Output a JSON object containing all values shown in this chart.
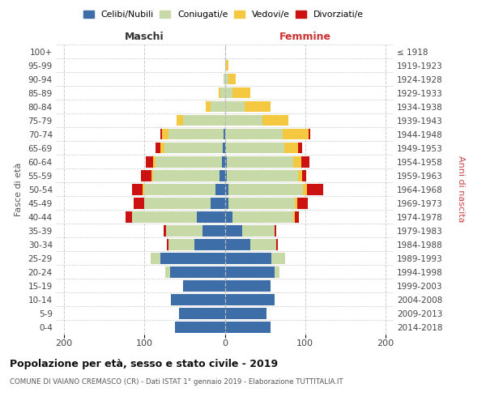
{
  "age_groups": [
    "0-4",
    "5-9",
    "10-14",
    "15-19",
    "20-24",
    "25-29",
    "30-34",
    "35-39",
    "40-44",
    "45-49",
    "50-54",
    "55-59",
    "60-64",
    "65-69",
    "70-74",
    "75-79",
    "80-84",
    "85-89",
    "90-94",
    "95-99",
    "100+"
  ],
  "birth_years": [
    "2014-2018",
    "2009-2013",
    "2004-2008",
    "1999-2003",
    "1994-1998",
    "1989-1993",
    "1984-1988",
    "1979-1983",
    "1974-1978",
    "1969-1973",
    "1964-1968",
    "1959-1963",
    "1954-1958",
    "1949-1953",
    "1944-1948",
    "1939-1943",
    "1934-1938",
    "1929-1933",
    "1924-1928",
    "1919-1923",
    "≤ 1918"
  ],
  "colors": {
    "celibi": "#3d6ea8",
    "coniugati": "#c8d9a8",
    "vedovi": "#f5c842",
    "divorziati": "#cc1111"
  },
  "maschi": {
    "celibi": [
      62,
      57,
      67,
      52,
      68,
      80,
      38,
      28,
      35,
      18,
      12,
      7,
      4,
      3,
      2,
      0,
      0,
      0,
      0,
      0,
      0
    ],
    "coniugati": [
      0,
      0,
      0,
      0,
      6,
      12,
      32,
      45,
      80,
      82,
      88,
      82,
      82,
      72,
      68,
      52,
      18,
      6,
      2,
      0,
      0
    ],
    "vedovi": [
      0,
      0,
      0,
      0,
      0,
      0,
      0,
      0,
      0,
      0,
      2,
      2,
      3,
      5,
      8,
      8,
      6,
      2,
      0,
      0,
      0
    ],
    "divorziati": [
      0,
      0,
      0,
      0,
      0,
      0,
      2,
      3,
      8,
      13,
      13,
      13,
      9,
      6,
      2,
      0,
      0,
      0,
      0,
      0,
      0
    ]
  },
  "femmine": {
    "celibi": [
      57,
      52,
      62,
      57,
      62,
      58,
      32,
      22,
      10,
      5,
      5,
      3,
      3,
      2,
      0,
      0,
      0,
      0,
      0,
      0,
      0
    ],
    "coniugati": [
      0,
      0,
      0,
      0,
      6,
      17,
      32,
      40,
      75,
      82,
      92,
      88,
      82,
      72,
      72,
      47,
      25,
      10,
      5,
      2,
      0
    ],
    "vedovi": [
      0,
      0,
      0,
      0,
      0,
      0,
      0,
      0,
      2,
      3,
      5,
      5,
      10,
      17,
      32,
      32,
      32,
      22,
      9,
      3,
      0
    ],
    "divorziati": [
      0,
      0,
      0,
      0,
      0,
      0,
      2,
      2,
      5,
      13,
      20,
      5,
      10,
      5,
      2,
      0,
      0,
      0,
      0,
      0,
      0
    ]
  },
  "title": "Popolazione per età, sesso e stato civile - 2019",
  "subtitle": "COMUNE DI VAIANO CREMASCO (CR) - Dati ISTAT 1° gennaio 2019 - Elaborazione TUTTITALIA.IT",
  "xlabel_left": "Maschi",
  "xlabel_right": "Femmine",
  "ylabel_left": "Fasce di età",
  "ylabel_right": "Anni di nascita",
  "legend_labels": [
    "Celibi/Nubili",
    "Coniugati/e",
    "Vedovi/e",
    "Divorziati/e"
  ],
  "xlim": 210,
  "background_color": "#ffffff",
  "grid_color": "#cccccc"
}
